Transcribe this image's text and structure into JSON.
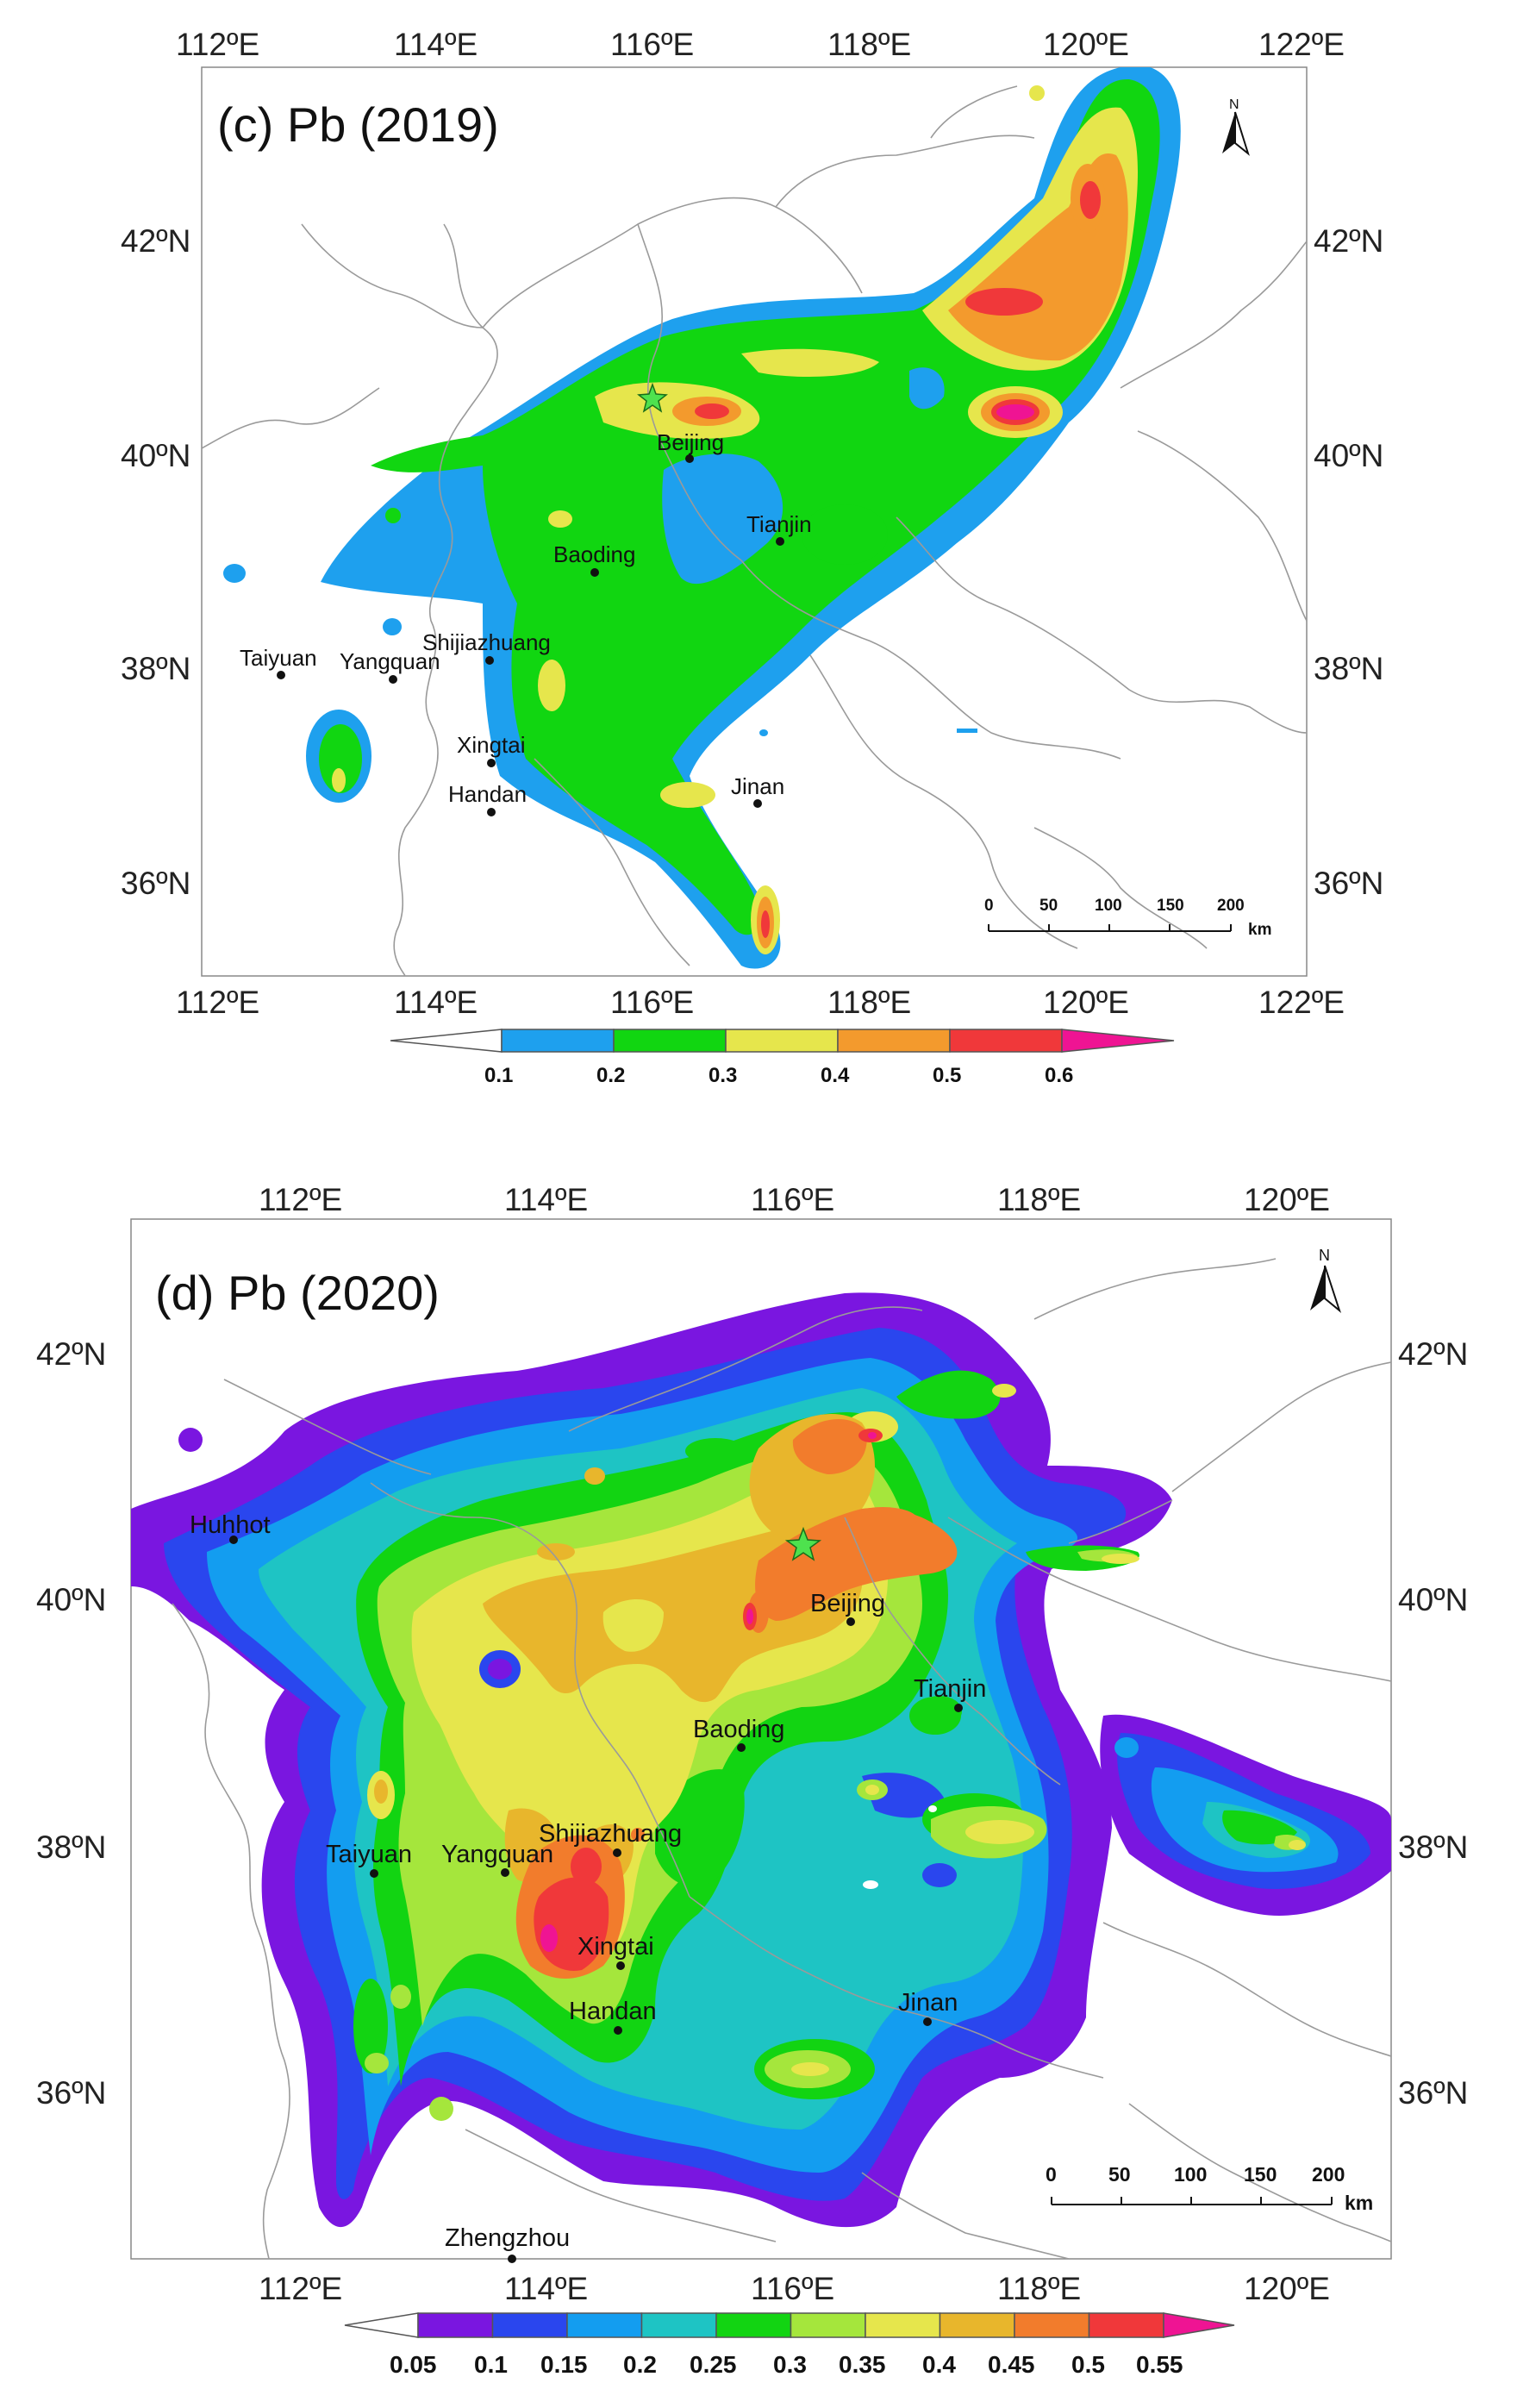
{
  "panels": [
    {
      "title": "(c) Pb (2019)",
      "x_ticks": [
        "112ºE",
        "114ºE",
        "116ºE",
        "118ºE",
        "120ºE",
        "122ºE"
      ],
      "y_ticks": [
        "42ºN",
        "40ºN",
        "38ºN",
        "36ºN"
      ],
      "cities": [
        "Beijing",
        "Tianjin",
        "Baoding",
        "Shijiazhuang",
        "Taiyuan",
        "Yangquan",
        "Xingtai",
        "Handan",
        "Jinan"
      ],
      "colorbar": {
        "labels": [
          "0.1",
          "0.2",
          "0.3",
          "0.4",
          "0.5",
          "0.6"
        ],
        "colors": [
          "#ffffff",
          "#1ea0ee",
          "#11d611",
          "#e6e64c",
          "#f39a2d",
          "#f0383a",
          "#ef1493"
        ]
      },
      "scalebar": {
        "labels": [
          "0",
          "50",
          "100",
          "150",
          "200"
        ],
        "unit": "km"
      },
      "north": "N"
    },
    {
      "title": "(d) Pb (2020)",
      "x_ticks": [
        "112ºE",
        "114ºE",
        "116ºE",
        "118ºE",
        "120ºE"
      ],
      "y_ticks": [
        "42ºN",
        "40ºN",
        "38ºN",
        "36ºN"
      ],
      "cities": [
        "Huhhot",
        "Beijing",
        "Tianjin",
        "Baoding",
        "Shijiazhuang",
        "Taiyuan",
        "Yangquan",
        "Xingtai",
        "Handan",
        "Jinan",
        "Zhengzhou"
      ],
      "colorbar": {
        "labels": [
          "0.05",
          "0.1",
          "0.15",
          "0.2",
          "0.25",
          "0.3",
          "0.35",
          "0.4",
          "0.45",
          "0.5",
          "0.55"
        ],
        "colors": [
          "#ffffff",
          "#7a16e0",
          "#2a46ee",
          "#139df0",
          "#1ec4c4",
          "#12d412",
          "#a5e63c",
          "#e6e64c",
          "#e8b62c",
          "#f27c2c",
          "#f0383a",
          "#ef1493"
        ]
      },
      "scalebar": {
        "labels": [
          "0",
          "50",
          "100",
          "150",
          "200"
        ],
        "unit": "km"
      },
      "north": "N"
    }
  ]
}
